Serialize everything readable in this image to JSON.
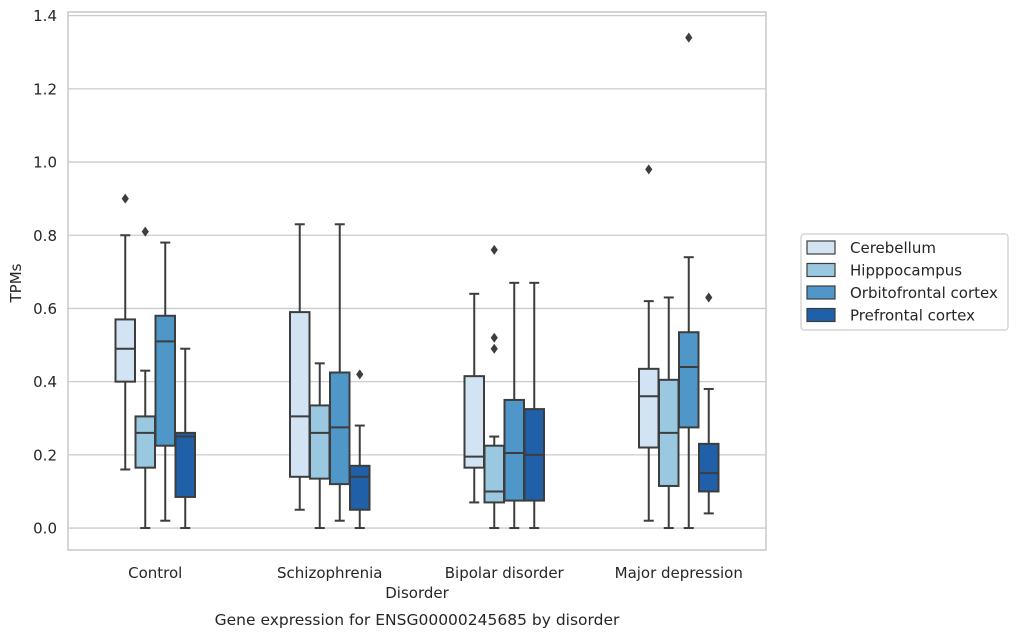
{
  "chart_data": {
    "type": "box",
    "xlabel": "Disorder",
    "ylabel": "TPMs",
    "caption": "Gene expression for ENSG00000245685 by disorder",
    "ylim": [
      -0.06,
      1.41
    ],
    "yticks": [
      "0.0",
      "0.2",
      "0.4",
      "0.6",
      "0.8",
      "1.0",
      "1.2",
      "1.4"
    ],
    "grid": "horizontal",
    "legend_position": "right",
    "categories": [
      "Control",
      "Schizophrenia",
      "Bipolar disorder",
      "Major depression"
    ],
    "series": [
      {
        "name": "Cerebellum",
        "color": "#d2e3f3",
        "boxes": [
          {
            "low": 0.16,
            "q1": 0.4,
            "median": 0.49,
            "q3": 0.57,
            "high": 0.8,
            "outliers": [
              0.9
            ]
          },
          {
            "low": 0.05,
            "q1": 0.14,
            "median": 0.305,
            "q3": 0.59,
            "high": 0.83,
            "outliers": []
          },
          {
            "low": 0.07,
            "q1": 0.165,
            "median": 0.195,
            "q3": 0.415,
            "high": 0.64,
            "outliers": []
          },
          {
            "low": 0.02,
            "q1": 0.22,
            "median": 0.36,
            "q3": 0.435,
            "high": 0.62,
            "outliers": [
              0.98
            ]
          }
        ]
      },
      {
        "name": "Hipppocampus",
        "color": "#9ac8e0",
        "boxes": [
          {
            "low": 0.0,
            "q1": 0.165,
            "median": 0.26,
            "q3": 0.305,
            "high": 0.43,
            "outliers": [
              0.81
            ]
          },
          {
            "low": 0.0,
            "q1": 0.135,
            "median": 0.26,
            "q3": 0.335,
            "high": 0.45,
            "outliers": []
          },
          {
            "low": 0.0,
            "q1": 0.07,
            "median": 0.1,
            "q3": 0.225,
            "high": 0.25,
            "outliers": [
              0.49,
              0.52,
              0.76
            ]
          },
          {
            "low": 0.0,
            "q1": 0.115,
            "median": 0.26,
            "q3": 0.405,
            "high": 0.63,
            "outliers": []
          }
        ]
      },
      {
        "name": "Orbitofrontal cortex",
        "color": "#5097c9",
        "boxes": [
          {
            "low": 0.02,
            "q1": 0.225,
            "median": 0.51,
            "q3": 0.58,
            "high": 0.78,
            "outliers": []
          },
          {
            "low": 0.02,
            "q1": 0.12,
            "median": 0.275,
            "q3": 0.425,
            "high": 0.83,
            "outliers": []
          },
          {
            "low": 0.0,
            "q1": 0.075,
            "median": 0.205,
            "q3": 0.35,
            "high": 0.67,
            "outliers": []
          },
          {
            "low": 0.0,
            "q1": 0.275,
            "median": 0.44,
            "q3": 0.535,
            "high": 0.74,
            "outliers": [
              1.34
            ]
          }
        ]
      },
      {
        "name": "Prefrontal cortex",
        "color": "#2060a8",
        "boxes": [
          {
            "low": 0.0,
            "q1": 0.085,
            "median": 0.25,
            "q3": 0.26,
            "high": 0.49,
            "outliers": []
          },
          {
            "low": 0.0,
            "q1": 0.05,
            "median": 0.14,
            "q3": 0.17,
            "high": 0.28,
            "outliers": [
              0.42
            ]
          },
          {
            "low": 0.0,
            "q1": 0.075,
            "median": 0.2,
            "q3": 0.325,
            "high": 0.67,
            "outliers": []
          },
          {
            "low": 0.04,
            "q1": 0.1,
            "median": 0.15,
            "q3": 0.23,
            "high": 0.38,
            "outliers": [
              0.63
            ]
          }
        ]
      }
    ]
  }
}
